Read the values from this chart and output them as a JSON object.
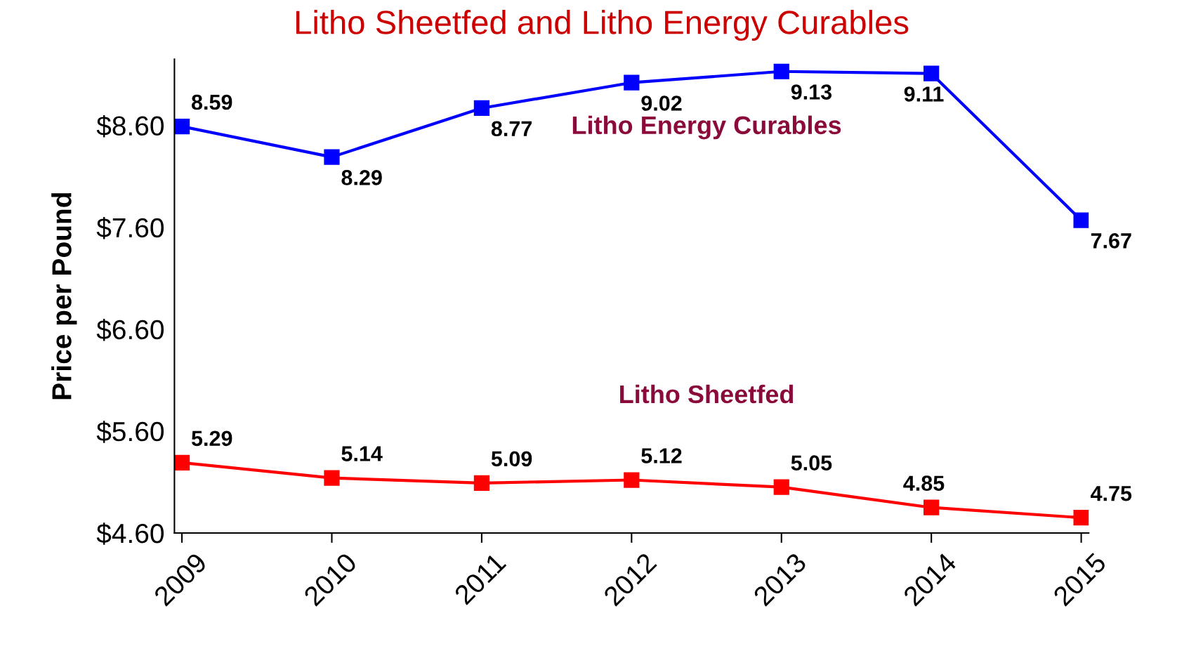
{
  "chart_data": {
    "type": "line",
    "title": "Litho Sheetfed and Litho Energy Curables",
    "ylabel": "Price per Pound",
    "categories": [
      "2009",
      "2010",
      "2011",
      "2012",
      "2013",
      "2014",
      "2015"
    ],
    "series": [
      {
        "name": "Litho Energy Curables",
        "color": "#0000ff",
        "values": [
          8.59,
          8.29,
          8.77,
          9.02,
          9.13,
          9.11,
          7.67
        ]
      },
      {
        "name": "Litho Sheetfed",
        "color": "#ff0000",
        "values": [
          5.29,
          5.14,
          5.09,
          5.12,
          5.05,
          4.85,
          4.75
        ]
      }
    ],
    "ylim": [
      4.6,
      9.25
    ],
    "yticks": [
      {
        "value": 4.6,
        "label": "$4.60"
      },
      {
        "value": 5.6,
        "label": "$5.60"
      },
      {
        "value": 6.6,
        "label": "$6.60"
      },
      {
        "value": 7.6,
        "label": "$7.60"
      },
      {
        "value": 8.6,
        "label": "$8.60"
      }
    ],
    "data_labels": true,
    "legend": false,
    "grid": false,
    "marker": "square",
    "line_style": "solid"
  }
}
